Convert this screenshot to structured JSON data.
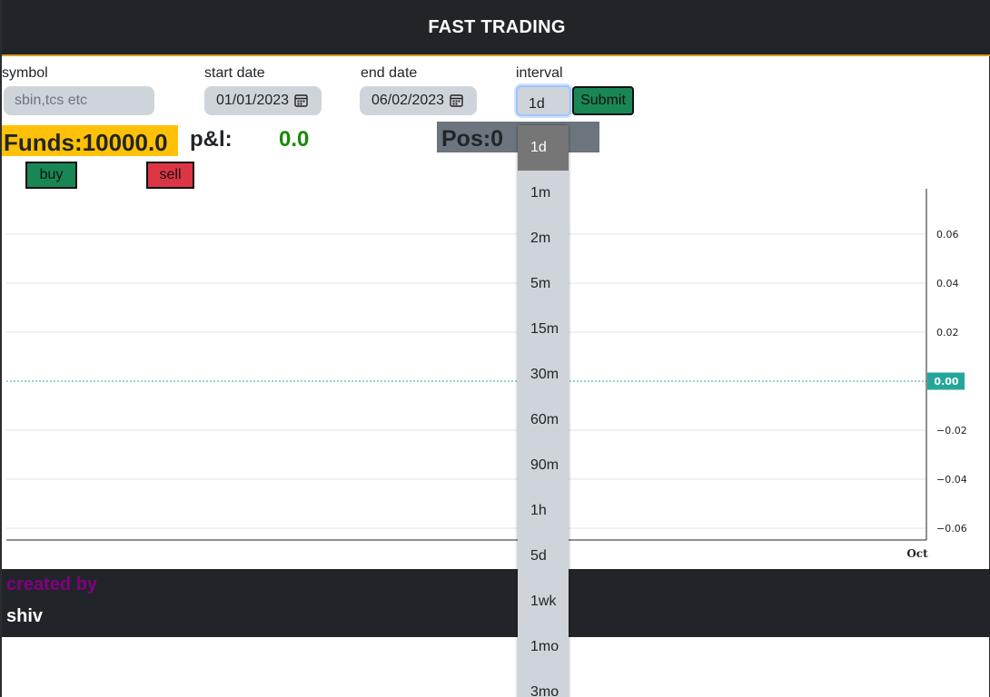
{
  "header": {
    "title": "FAST TRADING"
  },
  "form": {
    "symbol": {
      "label": "symbol",
      "placeholder": "sbin,tcs etc"
    },
    "start_date": {
      "label": "start date",
      "value": "01/01/2023"
    },
    "end_date": {
      "label": "end date",
      "value": "06/02/2023"
    },
    "interval": {
      "label": "interval",
      "value": "1d",
      "options": [
        "1d",
        "1m",
        "2m",
        "5m",
        "15m",
        "30m",
        "60m",
        "90m",
        "1h",
        "5d",
        "1wk",
        "1mo",
        "3mo"
      ],
      "selected_index": 0
    },
    "submit_label": "Submit"
  },
  "stats": {
    "funds_text": "Funds:10000.0",
    "pnl_label": "p&l:",
    "pnl_value": "0.0",
    "pos_text": "Pos:0"
  },
  "actions": {
    "buy_label": "buy",
    "sell_label": "sell"
  },
  "chart_data": {
    "type": "line",
    "series": [],
    "y_ticks": [
      "0.06",
      "0.04",
      "0.02",
      "0.00",
      "−0.02",
      "−0.04",
      "−0.06"
    ],
    "y_values": [
      0.06,
      0.04,
      0.02,
      0.0,
      -0.02,
      -0.04,
      -0.06
    ],
    "current_value_label": "0.00",
    "x_ticks": [
      "Oct"
    ],
    "ylim": [
      -0.06,
      0.06
    ],
    "grid": true,
    "colors": {
      "zero_line": "#26a69a",
      "grid": "#e0e3eb",
      "axis": "#222222"
    }
  },
  "footer": {
    "created_by": "created by",
    "author": "shiv"
  },
  "colors": {
    "header_bg": "#212529",
    "accent_line": "#d4a21a",
    "funds_bg": "#ffc107",
    "pnl_value": "#198a00",
    "pos_bg": "#6c757d",
    "buy_bg": "#198754",
    "sell_bg": "#dc3545",
    "created_by": "#800080"
  }
}
